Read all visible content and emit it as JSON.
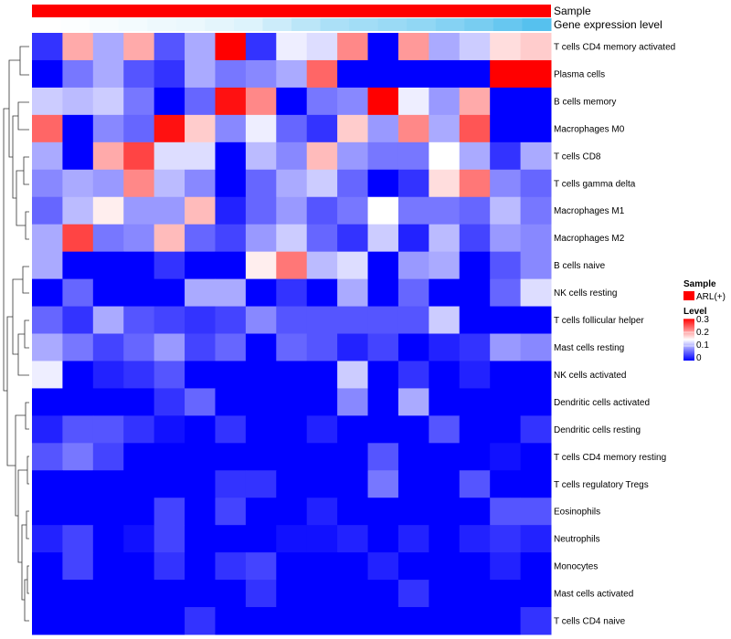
{
  "chart_data": {
    "type": "heatmap",
    "annotation_labels": [
      "Sample",
      "Gene expression level"
    ],
    "sample_color": "#FF0000",
    "gene_expression_bar": [
      0.0,
      0.02,
      0.05,
      0.07,
      0.1,
      0.12,
      0.16,
      0.2,
      0.3,
      0.4,
      0.5,
      0.55,
      0.6,
      0.65,
      0.72,
      0.8,
      0.9,
      1.0
    ],
    "rows": [
      "T cells CD4 memory activated",
      "Plasma cells",
      "B cells memory",
      "Macrophages M0",
      "T cells CD8",
      "T cells gamma delta",
      "Macrophages M1",
      "Macrophages M2",
      "B cells naive",
      "NK cells resting",
      "T cells follicular helper",
      "Mast cells resting",
      "NK cells activated",
      "Dendritic cells activated",
      "Dendritic cells resting",
      "T cells CD4 memory resting",
      "T cells regulatory  Tregs",
      "Eosinophils",
      "Neutrophils",
      "Monocytes",
      "Mast cells activated",
      "T cells CD4 naive"
    ],
    "values": [
      [
        0.03,
        0.2,
        0.1,
        0.2,
        0.05,
        0.1,
        0.3,
        0.03,
        0.14,
        0.13,
        0.22,
        0.0,
        0.21,
        0.1,
        0.12,
        0.17,
        0.18
      ],
      [
        0.0,
        0.07,
        0.1,
        0.05,
        0.03,
        0.1,
        0.07,
        0.08,
        0.1,
        0.24,
        0.0,
        0.0,
        0.0,
        0.0,
        0.0,
        0.3,
        0.3
      ],
      [
        0.12,
        0.11,
        0.12,
        0.07,
        0.0,
        0.06,
        0.29,
        0.22,
        0.0,
        0.07,
        0.08,
        0.3,
        0.14,
        0.09,
        0.2,
        0.0,
        0.0
      ],
      [
        0.24,
        0.0,
        0.08,
        0.06,
        0.29,
        0.18,
        0.08,
        0.14,
        0.06,
        0.03,
        0.18,
        0.09,
        0.22,
        0.1,
        0.25,
        0.0,
        0.0
      ],
      [
        0.1,
        0.0,
        0.2,
        0.26,
        0.13,
        0.13,
        0.0,
        0.11,
        0.08,
        0.19,
        0.09,
        0.07,
        0.07,
        0.15,
        0.1,
        0.03,
        0.1
      ],
      [
        0.08,
        0.1,
        0.09,
        0.22,
        0.11,
        0.08,
        0.0,
        0.06,
        0.1,
        0.12,
        0.06,
        0.0,
        0.03,
        0.17,
        0.23,
        0.08,
        0.06
      ],
      [
        0.06,
        0.11,
        0.16,
        0.09,
        0.09,
        0.19,
        0.02,
        0.06,
        0.09,
        0.05,
        0.07,
        0.15,
        0.07,
        0.07,
        0.06,
        0.11,
        0.07
      ],
      [
        0.1,
        0.26,
        0.07,
        0.08,
        0.19,
        0.06,
        0.04,
        0.09,
        0.12,
        0.06,
        0.03,
        0.12,
        0.02,
        0.11,
        0.04,
        0.09,
        0.08
      ],
      [
        0.1,
        0.0,
        0.0,
        0.0,
        0.03,
        0.0,
        0.0,
        0.16,
        0.23,
        0.11,
        0.13,
        0.0,
        0.09,
        0.1,
        0.0,
        0.05,
        0.08
      ],
      [
        0.0,
        0.06,
        0.0,
        0.0,
        0.0,
        0.1,
        0.1,
        0.0,
        0.03,
        0.0,
        0.1,
        0.0,
        0.06,
        0.0,
        0.0,
        0.06,
        0.13
      ],
      [
        0.06,
        0.03,
        0.1,
        0.05,
        0.04,
        0.03,
        0.04,
        0.08,
        0.05,
        0.05,
        0.05,
        0.05,
        0.05,
        0.12,
        0.0,
        0.0,
        0.0
      ],
      [
        0.1,
        0.07,
        0.04,
        0.06,
        0.09,
        0.04,
        0.06,
        0.0,
        0.06,
        0.05,
        0.02,
        0.04,
        0.0,
        0.02,
        0.03,
        0.09,
        0.08
      ],
      [
        0.14,
        0.0,
        0.02,
        0.03,
        0.05,
        0.0,
        0.0,
        0.0,
        0.0,
        0.0,
        0.12,
        0.0,
        0.03,
        0.0,
        0.02,
        0.0,
        0.0
      ],
      [
        0.0,
        0.0,
        0.0,
        0.0,
        0.03,
        0.06,
        0.0,
        0.0,
        0.0,
        0.0,
        0.08,
        0.0,
        0.1,
        0.0,
        0.0,
        0.0,
        0.0
      ],
      [
        0.02,
        0.05,
        0.05,
        0.03,
        0.01,
        0.0,
        0.03,
        0.0,
        0.0,
        0.02,
        0.0,
        0.0,
        0.0,
        0.05,
        0.0,
        0.0,
        0.03
      ],
      [
        0.05,
        0.07,
        0.04,
        0.0,
        0.0,
        0.0,
        0.0,
        0.0,
        0.0,
        0.0,
        0.0,
        0.05,
        0.0,
        0.0,
        0.0,
        0.01,
        0.0
      ],
      [
        0.0,
        0.0,
        0.0,
        0.0,
        0.0,
        0.0,
        0.03,
        0.03,
        0.0,
        0.0,
        0.0,
        0.07,
        0.0,
        0.0,
        0.05,
        0.0,
        0.0
      ],
      [
        0.0,
        0.0,
        0.0,
        0.0,
        0.04,
        0.0,
        0.04,
        0.0,
        0.0,
        0.02,
        0.0,
        0.0,
        0.0,
        0.0,
        0.0,
        0.05,
        0.05
      ],
      [
        0.02,
        0.04,
        0.0,
        0.01,
        0.04,
        0.0,
        0.0,
        0.0,
        0.01,
        0.01,
        0.02,
        0.0,
        0.02,
        0.0,
        0.02,
        0.03,
        0.02
      ],
      [
        0.0,
        0.04,
        0.0,
        0.0,
        0.03,
        0.0,
        0.03,
        0.04,
        0.0,
        0.0,
        0.0,
        0.02,
        0.0,
        0.0,
        0.0,
        0.02,
        0.0
      ],
      [
        0.0,
        0.0,
        0.0,
        0.0,
        0.0,
        0.0,
        0.0,
        0.03,
        0.0,
        0.0,
        0.0,
        0.0,
        0.03,
        0.0,
        0.0,
        0.0,
        0.0
      ],
      [
        0.0,
        0.0,
        0.0,
        0.0,
        0.0,
        0.03,
        0.0,
        0.0,
        0.0,
        0.0,
        0.0,
        0.0,
        0.0,
        0.0,
        0.0,
        0.0,
        0.03
      ]
    ],
    "color_scale": {
      "min": 0,
      "mid": 0.15,
      "max": 0.3,
      "low_color": "#0000FF",
      "mid_color": "#FFFFFF",
      "high_color": "#FF0000"
    },
    "legend": {
      "sample_title": "Sample",
      "sample_entry": "ARL(+)",
      "level_title": "Level",
      "level_ticks": [
        "0.3",
        "0.2",
        "0.1",
        "0"
      ]
    },
    "dendrogram": "row clustering tree on left"
  }
}
